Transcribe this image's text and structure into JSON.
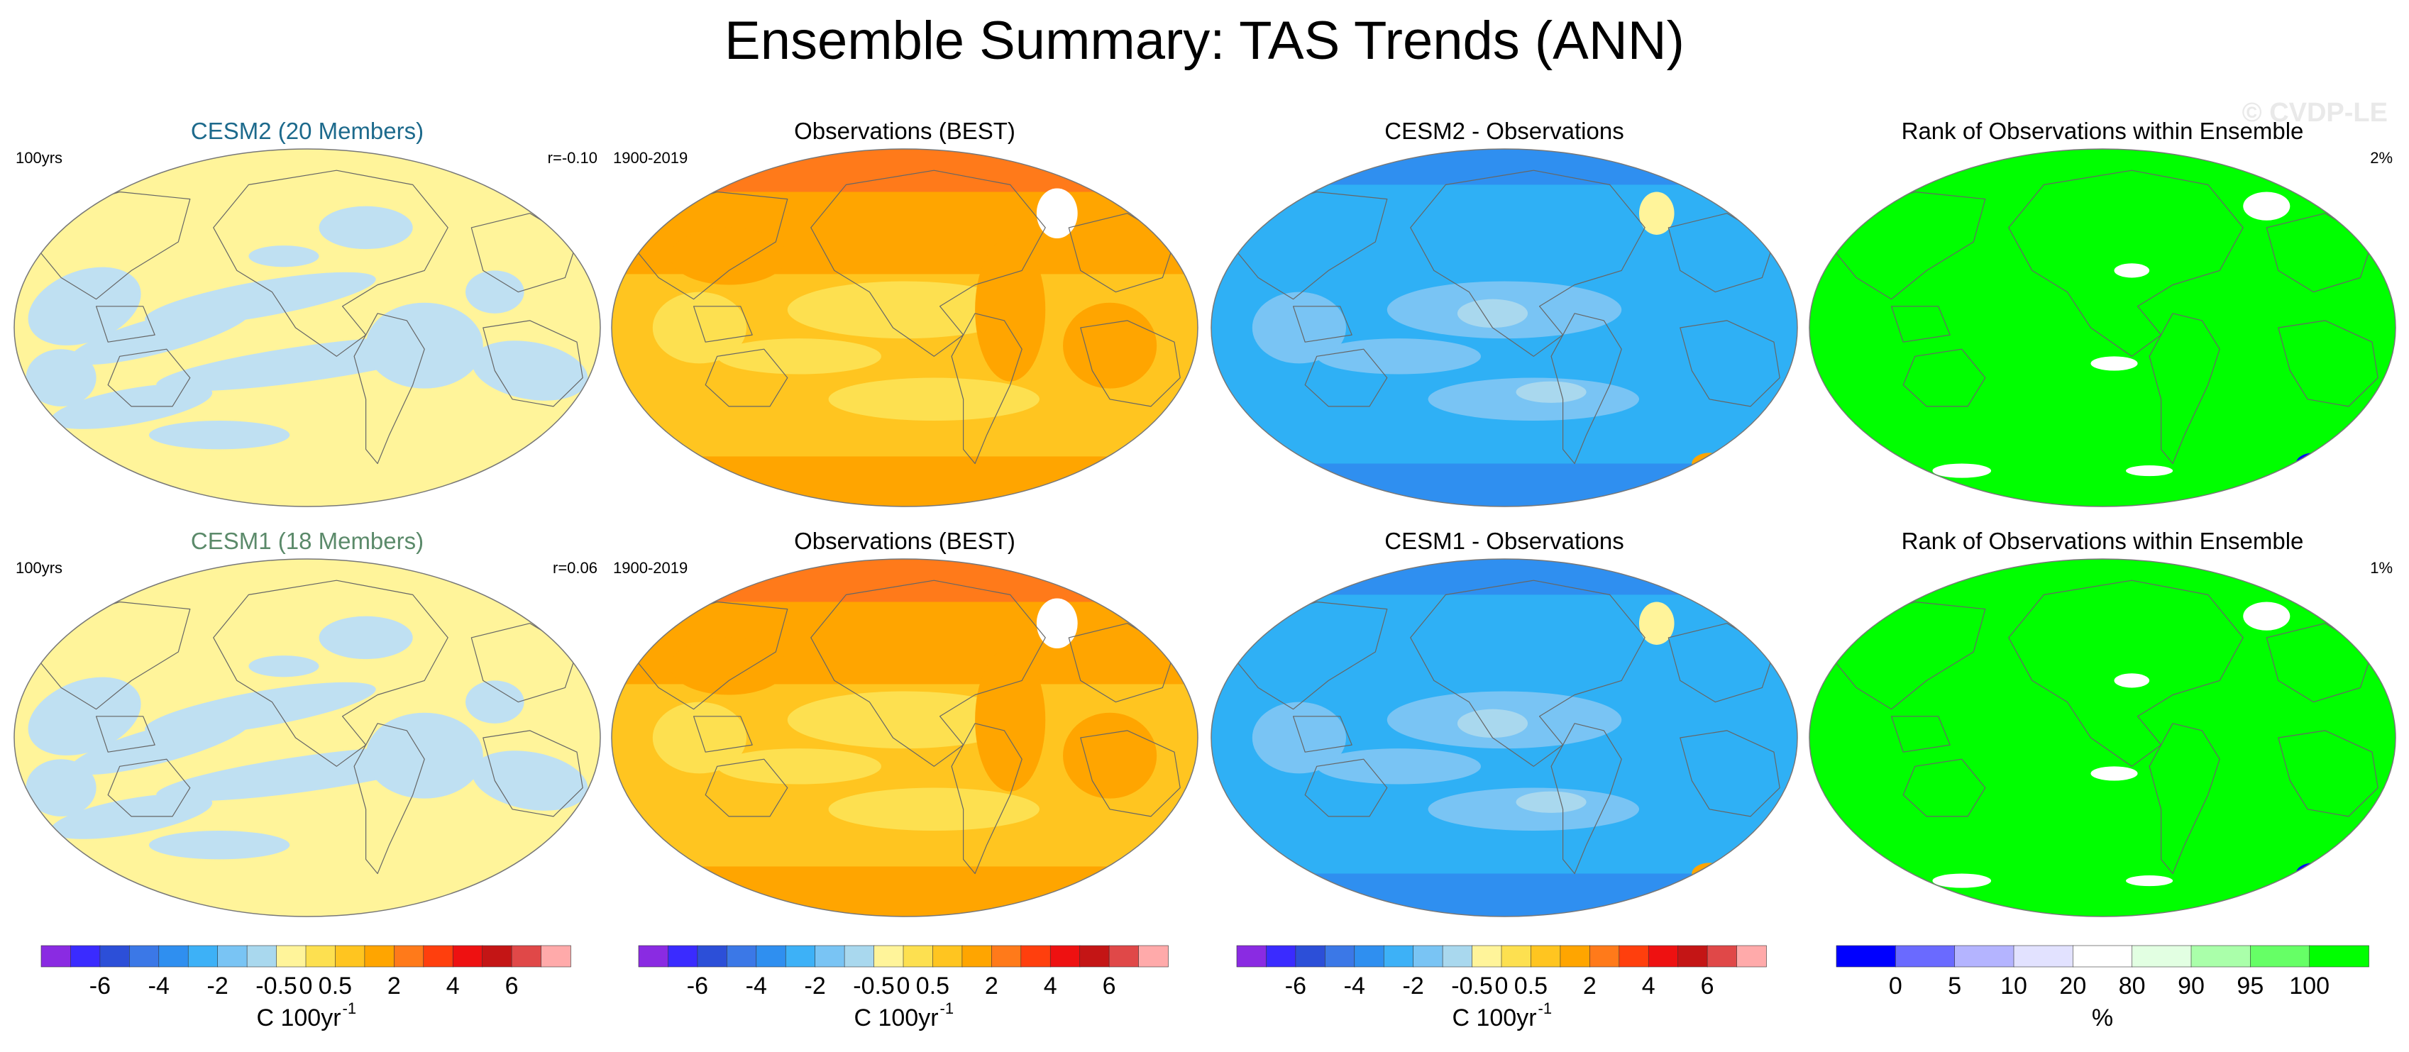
{
  "title": "Ensemble Summary: TAS Trends (ANN)",
  "watermark": "© CVDP-LE",
  "rows": [
    {
      "panels": [
        {
          "title": "CESM2 (20 Members)",
          "title_color": "#1d6a8c",
          "left": "100yrs",
          "right": "r=-0.10",
          "kind": "model"
        },
        {
          "title": "Observations (BEST)",
          "title_color": "#000000",
          "left": "1900-2019",
          "right": "",
          "kind": "obs"
        },
        {
          "title": "CESM2 - Observations",
          "title_color": "#000000",
          "left": "",
          "right": "",
          "kind": "diff"
        },
        {
          "title": "Rank of Observations within Ensemble",
          "title_color": "#000000",
          "left": "",
          "right": "2%",
          "kind": "rank"
        }
      ]
    },
    {
      "panels": [
        {
          "title": "CESM1 (18 Members)",
          "title_color": "#5b8a6a",
          "left": "100yrs",
          "right": "r=0.06",
          "kind": "model"
        },
        {
          "title": "Observations (BEST)",
          "title_color": "#000000",
          "left": "1900-2019",
          "right": "",
          "kind": "obs"
        },
        {
          "title": "CESM1 - Observations",
          "title_color": "#000000",
          "left": "",
          "right": "",
          "kind": "diff"
        },
        {
          "title": "Rank of Observations within Ensemble",
          "title_color": "#000000",
          "left": "",
          "right": "1%",
          "kind": "rank"
        }
      ]
    }
  ],
  "colorbars": [
    {
      "unit": "C 100yr",
      "unit_exponent": "-1",
      "colors": [
        "#8a2be2",
        "#3a2bff",
        "#2c4fd8",
        "#3b78e7",
        "#2f8ff0",
        "#3db1f7",
        "#79c4f4",
        "#a9d8ee",
        "#fff49a",
        "#fde050",
        "#ffc520",
        "#ffa500",
        "#ff7a1a",
        "#ff3f0d",
        "#ee1111",
        "#c41515",
        "#e04848",
        "#ffaaaa"
      ],
      "tick_labels": [
        "-6",
        "-4",
        "-2",
        "-0.5",
        "0",
        "0.5",
        "2",
        "4",
        "6"
      ]
    },
    {
      "unit": "C 100yr",
      "unit_exponent": "-1",
      "colors": [
        "#8a2be2",
        "#3a2bff",
        "#2c4fd8",
        "#3b78e7",
        "#2f8ff0",
        "#3db1f7",
        "#79c4f4",
        "#a9d8ee",
        "#fff49a",
        "#fde050",
        "#ffc520",
        "#ffa500",
        "#ff7a1a",
        "#ff3f0d",
        "#ee1111",
        "#c41515",
        "#e04848",
        "#ffaaaa"
      ],
      "tick_labels": [
        "-6",
        "-4",
        "-2",
        "-0.5",
        "0",
        "0.5",
        "2",
        "4",
        "6"
      ]
    },
    {
      "unit": "C 100yr",
      "unit_exponent": "-1",
      "colors": [
        "#8a2be2",
        "#3a2bff",
        "#2c4fd8",
        "#3b78e7",
        "#2f8ff0",
        "#3db1f7",
        "#79c4f4",
        "#a9d8ee",
        "#fff49a",
        "#fde050",
        "#ffc520",
        "#ffa500",
        "#ff7a1a",
        "#ff3f0d",
        "#ee1111",
        "#c41515",
        "#e04848",
        "#ffaaaa"
      ],
      "tick_labels": [
        "-6",
        "-4",
        "-2",
        "-0.5",
        "0",
        "0.5",
        "2",
        "4",
        "6"
      ]
    },
    {
      "unit": "%",
      "unit_exponent": "",
      "colors": [
        "#0000ff",
        "#6a6aff",
        "#b4b4ff",
        "#e2e2ff",
        "#ffffff",
        "#e2ffe2",
        "#aaffaa",
        "#66ff66",
        "#00ff00"
      ],
      "tick_labels": [
        "0",
        "5",
        "10",
        "20",
        "80",
        "90",
        "95",
        "100"
      ]
    }
  ],
  "map_colors": {
    "model_land": "#fff49a",
    "model_cool": "#bfe0f2",
    "obs_base": "#ffc520",
    "obs_warm": "#ffa500",
    "obs_hot": "#ff7a1a",
    "obs_mild": "#fde050",
    "diff_base": "#2fb0f5",
    "diff_dark": "#2f8ff0",
    "diff_light": "#79c4f4",
    "diff_pale": "#a9d8ee",
    "rank_base": "#00ff00",
    "rank_white": "#ffffff",
    "rank_blue": "#0000ff"
  }
}
